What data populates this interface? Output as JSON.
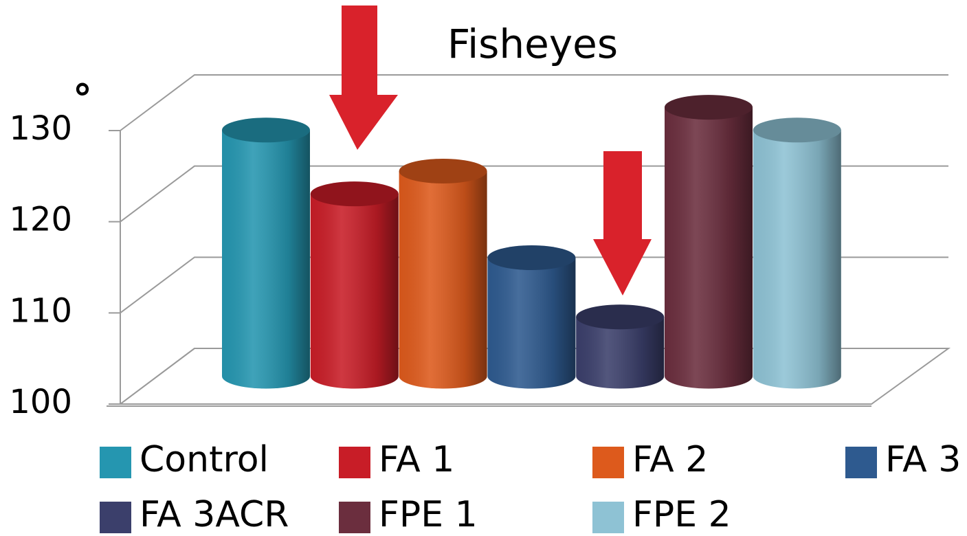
{
  "chart_data": {
    "type": "bar3d",
    "title": "Fisheyes",
    "y_label": "°",
    "series": [
      {
        "name": "Control",
        "color": "#2596b0",
        "values": [
          127
        ]
      },
      {
        "name": "FA 1",
        "color": "#c81d27",
        "values": [
          120
        ]
      },
      {
        "name": "FA 2",
        "color": "#dd5a1c",
        "values": [
          122.5
        ]
      },
      {
        "name": "FA 3",
        "color": "#2e5a8f",
        "values": [
          113
        ]
      },
      {
        "name": "FA 3ACR",
        "color": "#3b3f6b",
        "values": [
          106.5
        ]
      },
      {
        "name": "FPE 1",
        "color": "#6b2e3e",
        "values": [
          129.5
        ]
      },
      {
        "name": "FPE 2",
        "color": "#8ec2d4",
        "values": [
          127
        ]
      }
    ],
    "ylim": [
      100,
      130
    ],
    "yticks": [
      100,
      110,
      120,
      130
    ],
    "grid": true
  }
}
